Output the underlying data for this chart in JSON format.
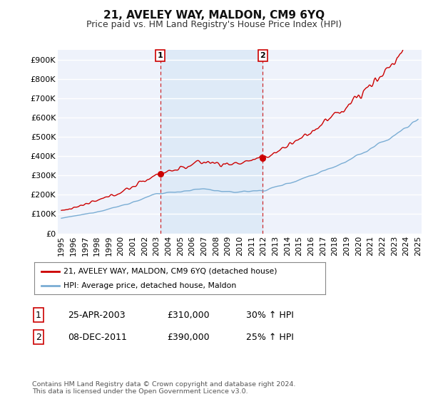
{
  "title": "21, AVELEY WAY, MALDON, CM9 6YQ",
  "subtitle": "Price paid vs. HM Land Registry's House Price Index (HPI)",
  "ylim": [
    0,
    950000
  ],
  "yticks": [
    0,
    100000,
    200000,
    300000,
    400000,
    500000,
    600000,
    700000,
    800000,
    900000
  ],
  "ytick_labels": [
    "£0",
    "£100K",
    "£200K",
    "£300K",
    "£400K",
    "£500K",
    "£600K",
    "£700K",
    "£800K",
    "£900K"
  ],
  "background_color": "#ffffff",
  "plot_bg_color": "#eef2fb",
  "grid_color": "#ffffff",
  "line1_color": "#cc0000",
  "line2_color": "#7aadd4",
  "vline_color": "#cc0000",
  "sale1_year": 2003.32,
  "sale1_price": 310000,
  "sale1_label": "1",
  "sale2_year": 2011.93,
  "sale2_price": 390000,
  "sale2_label": "2",
  "legend_line1": "21, AVELEY WAY, MALDON, CM9 6YQ (detached house)",
  "legend_line2": "HPI: Average price, detached house, Maldon",
  "table_row1_num": "1",
  "table_row1_date": "25-APR-2003",
  "table_row1_price": "£310,000",
  "table_row1_hpi": "30% ↑ HPI",
  "table_row2_num": "2",
  "table_row2_date": "08-DEC-2011",
  "table_row2_price": "£390,000",
  "table_row2_hpi": "25% ↑ HPI",
  "footnote": "Contains HM Land Registry data © Crown copyright and database right 2024.\nThis data is licensed under the Open Government Licence v3.0.",
  "title_fontsize": 11,
  "subtitle_fontsize": 9,
  "tick_fontsize": 8
}
